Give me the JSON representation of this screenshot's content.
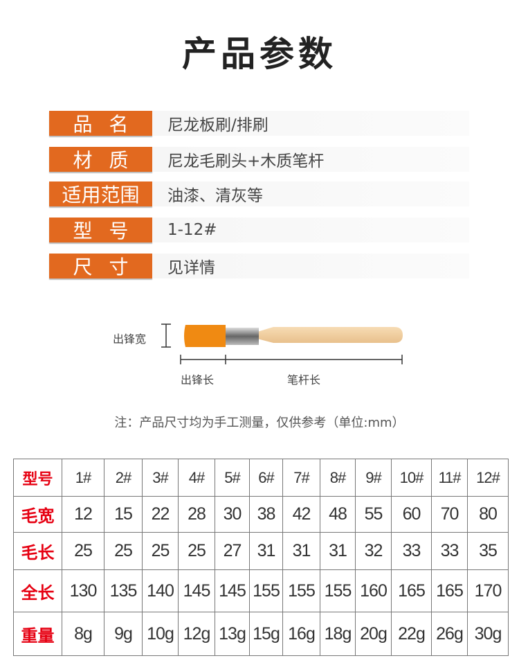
{
  "title": "产品参数",
  "specs": [
    {
      "label": "品名",
      "value": "尼龙板刷/排刷"
    },
    {
      "label": "材质",
      "value": "尼龙毛刷头+木质笔杆"
    },
    {
      "label": "适用范围",
      "value": "油漆、清灰等"
    },
    {
      "label": "型号",
      "value": "1-12#"
    },
    {
      "label": "尺寸",
      "value": "见详情"
    }
  ],
  "diagram": {
    "width_label": "出锋宽",
    "bristle_length_label": "出锋长",
    "handle_length_label": "笔杆长"
  },
  "note": "注：产品尺寸均为手工测量，仅供参考（单位:mm）",
  "colors": {
    "label_bg": "#e2691f",
    "table_header": "#e60012"
  },
  "table": [
    {
      "header": "型号",
      "cells": [
        "1#",
        "2#",
        "3#",
        "4#",
        "5#",
        "6#",
        "7#",
        "8#",
        "9#",
        "10#",
        "11#",
        "12#"
      ]
    },
    {
      "header": "毛宽",
      "cells": [
        "12",
        "15",
        "22",
        "28",
        "30",
        "38",
        "42",
        "48",
        "55",
        "60",
        "70",
        "80"
      ]
    },
    {
      "header": "毛长",
      "cells": [
        "25",
        "25",
        "25",
        "25",
        "27",
        "31",
        "31",
        "31",
        "32",
        "33",
        "33",
        "35"
      ]
    },
    {
      "header": "全长",
      "cells": [
        "130",
        "135",
        "140",
        "145",
        "145",
        "155",
        "155",
        "155",
        "160",
        "165",
        "165",
        "170"
      ]
    },
    {
      "header": "重量",
      "cells": [
        "8g",
        "9g",
        "10g",
        "12g",
        "13g",
        "15g",
        "16g",
        "18g",
        "20g",
        "22g",
        "26g",
        "30g"
      ]
    }
  ]
}
